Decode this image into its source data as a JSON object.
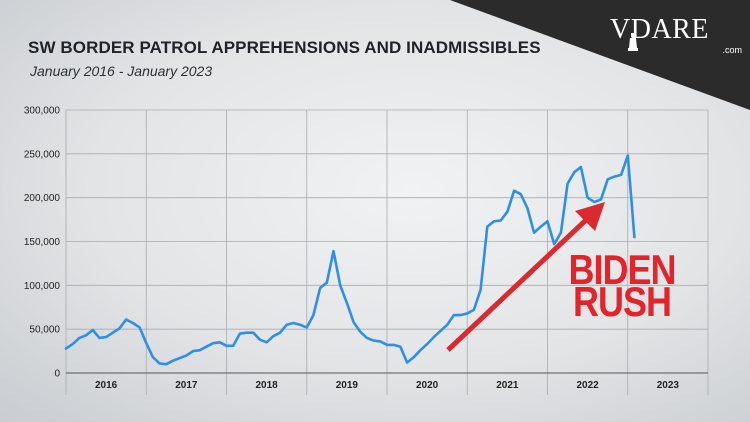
{
  "title": "SW BORDER PATROL APPREHENSIONS AND INADMISSIBLES",
  "subtitle": "January 2016 - January 2023",
  "logo": {
    "text": "VDARE",
    "domain": ".com"
  },
  "annotation": {
    "line1": "BIDEN",
    "line2": "RUSH",
    "color": "#e3242b"
  },
  "colors": {
    "line": "#2f8fe6",
    "arrow": "#d92a2f",
    "corner": "#2b2b2b"
  },
  "chart_data": {
    "type": "line",
    "title": "SW BORDER PATROL APPREHENSIONS AND INADMISSIBLES",
    "subtitle": "January 2016 - January 2023",
    "xlabel": "",
    "ylabel": "",
    "ylim": [
      0,
      300000
    ],
    "yticks": [
      0,
      50000,
      100000,
      150000,
      200000,
      250000,
      300000
    ],
    "ytick_labels": [
      "0",
      "50,000",
      "100,000",
      "150,000",
      "200,000",
      "250,000",
      "300,000"
    ],
    "xtick_labels": [
      "2016",
      "2017",
      "2018",
      "2019",
      "2020",
      "2021",
      "2022",
      "2023"
    ],
    "grid": true,
    "series": [
      {
        "values": [
          28000,
          33000,
          40000,
          43000,
          49000,
          40000,
          41000,
          46000,
          51000,
          61000,
          57000,
          52000,
          34000,
          18000,
          11000,
          10000,
          14000,
          17000,
          20000,
          25000,
          26000,
          30000,
          34000,
          35000,
          31000,
          31000,
          45000,
          46000,
          46000,
          38000,
          35000,
          42000,
          46000,
          55000,
          57000,
          55000,
          52000,
          66000,
          97000,
          103000,
          139000,
          100000,
          80000,
          58000,
          47000,
          40000,
          37000,
          36000,
          32000,
          32000,
          30000,
          12000,
          18000,
          26000,
          33000,
          41000,
          48000,
          55000,
          66000,
          66000,
          68000,
          72000,
          95000,
          167000,
          173000,
          174000,
          184000,
          208000,
          204000,
          188000,
          160000,
          167000,
          173000,
          147000,
          160000,
          216000,
          229000,
          235000,
          200000,
          195000,
          198000,
          221000,
          224000,
          226000,
          248000,
          155000
        ]
      }
    ],
    "annotations": [
      "BIDEN",
      "RUSH"
    ]
  }
}
